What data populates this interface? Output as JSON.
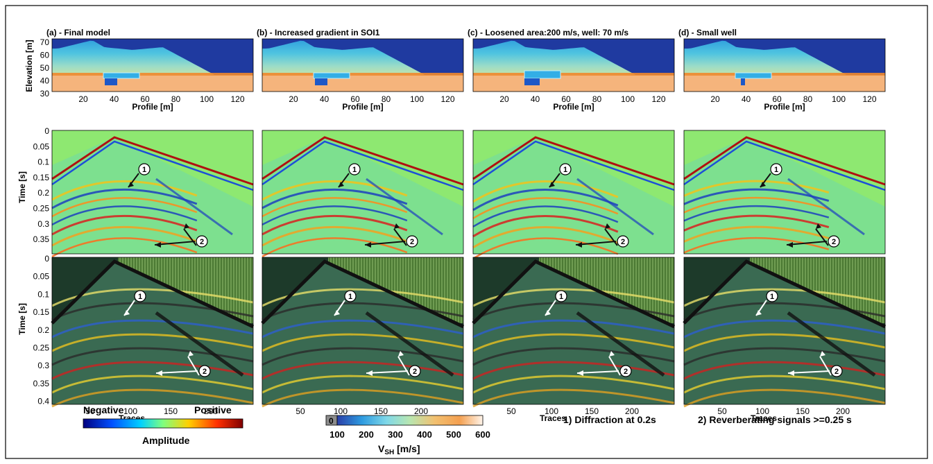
{
  "figure": {
    "columns": [
      {
        "label": "(a) - Final model",
        "variant": "final",
        "well_width": 18,
        "ellipse_scale": 1.0
      },
      {
        "label": "(b) - Increased gradient in SOI1",
        "variant": "gradient",
        "well_width": 18,
        "ellipse_scale": 1.0
      },
      {
        "label": "(c) - Loosened area:200 m/s, well: 70 m/s",
        "variant": "loosened",
        "well_width": 22,
        "ellipse_scale": 1.1
      },
      {
        "label": "(d) - Small well",
        "variant": "small",
        "well_width": 6,
        "ellipse_scale": 0.8
      }
    ],
    "model_ylabel": "Elevation [m]",
    "model_yticks": [
      "70",
      "60",
      "50",
      "40",
      "30"
    ],
    "profile_xlabel": "Profile [m]",
    "profile_xticks": [
      "20",
      "40",
      "60",
      "80",
      "100",
      "120"
    ],
    "time_ylabel": "Time [s]",
    "time_yticks_mid": [
      "0",
      "0.05",
      "0.1",
      "0.15",
      "0.2",
      "0.25",
      "0.3",
      "0.35"
    ],
    "time_yticks_bot": [
      "0",
      "0.05",
      "0.1",
      "0.15",
      "0.2",
      "0.25",
      "0.3",
      "0.35",
      "0.4"
    ],
    "traces_xlabel": "Traces",
    "traces_xticks": [
      "50",
      "100",
      "150",
      "200"
    ],
    "annotation_1": "1",
    "annotation_2": "2",
    "amplitude_legend": {
      "negative": "Negative",
      "positive": "Positive",
      "title": "Amplitude",
      "colors": [
        "#00007f",
        "#0050ff",
        "#00d0ff",
        "#7fff7f",
        "#ffd000",
        "#ff3000",
        "#7f0000"
      ]
    },
    "velocity_legend": {
      "zero_label": "0",
      "ticks": [
        "100",
        "200",
        "300",
        "400",
        "500",
        "600"
      ],
      "title_main": "V",
      "title_sub": "SH",
      "title_unit": " [m/s]",
      "colors": [
        "#2a3fa8",
        "#2e9be0",
        "#7fd8e8",
        "#b8e6b0",
        "#f2c070",
        "#f4a050",
        "#fff4ea"
      ]
    },
    "notes": [
      "1) Diffraction at 0.2s",
      "2) Reverberating signals >=0.25 s"
    ]
  }
}
